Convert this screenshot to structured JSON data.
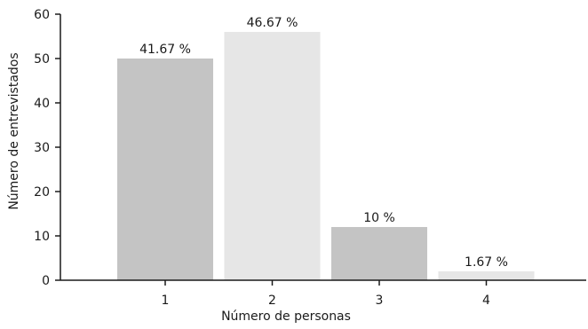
{
  "chart_data": {
    "type": "bar",
    "categories": [
      "1",
      "2",
      "3",
      "4"
    ],
    "values": [
      50,
      56,
      12,
      2
    ],
    "data_labels": [
      "41.67 %",
      "46.67 %",
      "10 %",
      "1.67 %"
    ],
    "bar_colors": [
      "#c4c4c4",
      "#e6e6e6",
      "#c4c4c4",
      "#e6e6e6"
    ],
    "xlabel": "Número de personas",
    "ylabel": "Número de entrevistados",
    "ylim": [
      0,
      60
    ],
    "yticks": [
      0,
      10,
      20,
      30,
      40,
      50,
      60
    ],
    "grid": false,
    "legend": "none"
  }
}
